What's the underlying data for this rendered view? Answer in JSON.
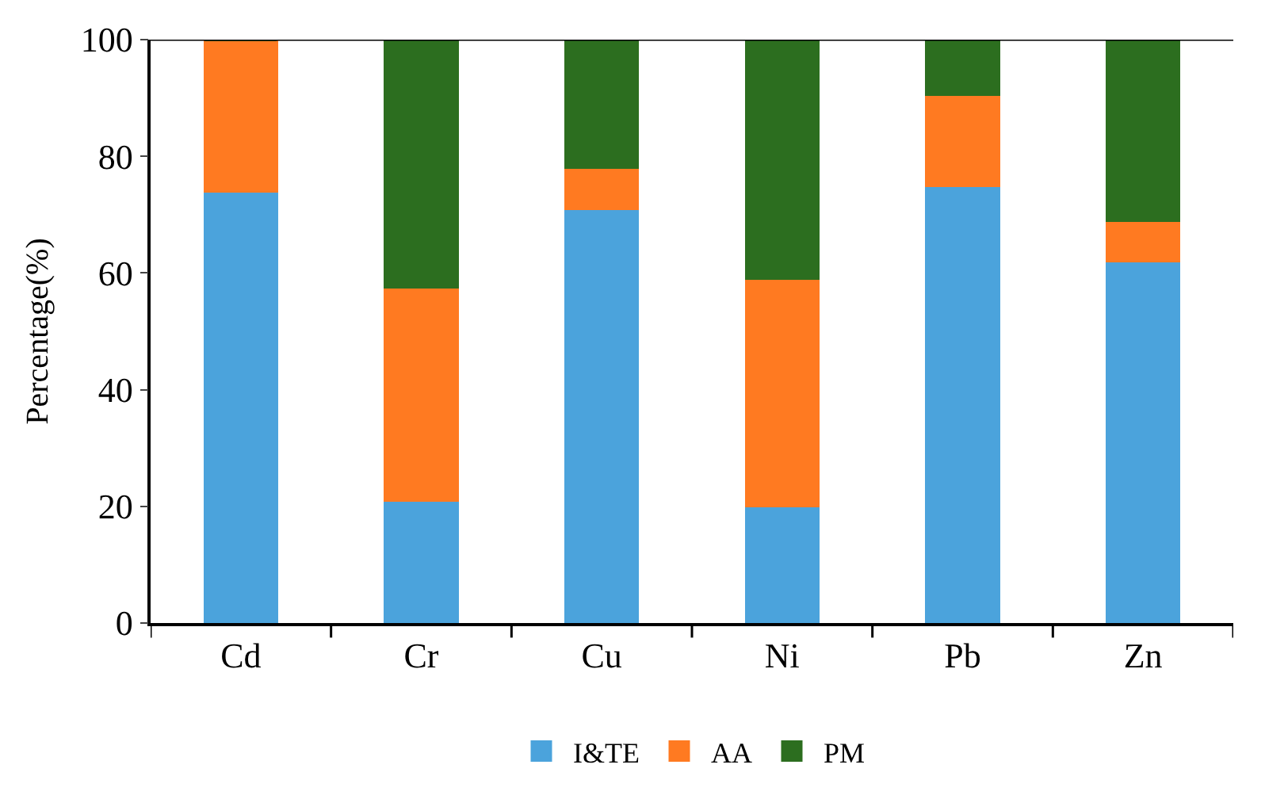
{
  "chart_data": {
    "type": "bar",
    "stacked": true,
    "ylabel": "Percentage(%)",
    "categories": [
      "Cd",
      "Cr",
      "Cu",
      "Ni",
      "Pb",
      "Zn"
    ],
    "series": [
      {
        "name": "I&TE",
        "color": "#4ba3dc",
        "values": [
          74,
          21,
          71,
          20,
          75,
          62
        ]
      },
      {
        "name": "AA",
        "color": "#ff7a21",
        "values": [
          26,
          36.5,
          7,
          39,
          15.5,
          7
        ]
      },
      {
        "name": "PM",
        "color": "#2c6e1f",
        "values": [
          0,
          42.5,
          22,
          41,
          9.5,
          31
        ]
      }
    ],
    "ylim": [
      0,
      100
    ],
    "yticks": [
      0,
      20,
      40,
      60,
      80,
      100
    ],
    "legend": "bottom"
  }
}
